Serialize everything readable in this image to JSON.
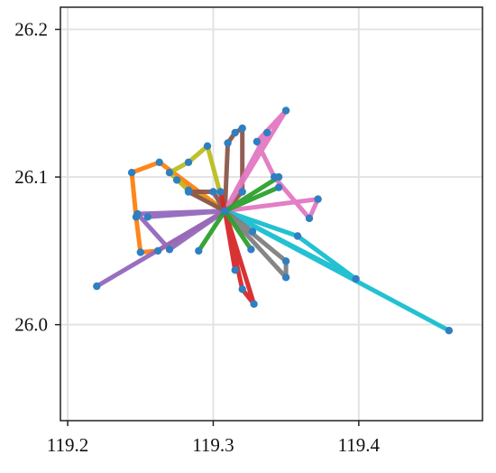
{
  "chart_data": {
    "type": "line",
    "title": "",
    "xlabel": "",
    "ylabel": "",
    "xlim": [
      119.195,
      119.485
    ],
    "ylim": [
      25.935,
      26.215
    ],
    "xticks": [
      119.2,
      119.3,
      119.4
    ],
    "yticks": [
      26.0,
      26.1,
      26.2
    ],
    "xtick_labels": [
      "119.2",
      "119.3",
      "119.4"
    ],
    "ytick_labels": [
      "26.0",
      "26.1",
      "26.2"
    ],
    "grid": true,
    "legend": "none",
    "marker_color": "#2f7fc1",
    "hub": [
      119.308,
      26.077
    ],
    "series": [
      {
        "color": "#ff7f0e",
        "points": [
          [
            119.308,
            26.077
          ],
          [
            119.263,
            26.11
          ],
          [
            119.244,
            26.103
          ],
          [
            119.247,
            26.073
          ],
          [
            119.25,
            26.049
          ],
          [
            119.262,
            26.05
          ],
          [
            119.308,
            26.077
          ],
          [
            119.275,
            26.098
          ],
          [
            119.308,
            26.077
          ]
        ]
      },
      {
        "color": "#9467bd",
        "points": [
          [
            119.308,
            26.077
          ],
          [
            119.22,
            26.026
          ],
          [
            119.308,
            26.077
          ],
          [
            119.255,
            26.073
          ],
          [
            119.308,
            26.077
          ],
          [
            119.248,
            26.075
          ],
          [
            119.27,
            26.051
          ],
          [
            119.308,
            26.077
          ]
        ]
      },
      {
        "color": "#bcbd22",
        "points": [
          [
            119.308,
            26.077
          ],
          [
            119.283,
            26.091
          ],
          [
            119.27,
            26.103
          ],
          [
            119.283,
            26.11
          ],
          [
            119.296,
            26.121
          ],
          [
            119.308,
            26.077
          ]
        ]
      },
      {
        "color": "#8c564b",
        "points": [
          [
            119.308,
            26.077
          ],
          [
            119.31,
            26.123
          ],
          [
            119.315,
            26.13
          ],
          [
            119.32,
            26.133
          ],
          [
            119.32,
            26.09
          ],
          [
            119.308,
            26.077
          ],
          [
            119.3,
            26.09
          ],
          [
            119.283,
            26.09
          ],
          [
            119.308,
            26.077
          ]
        ]
      },
      {
        "color": "#e377c2",
        "points": [
          [
            119.308,
            26.077
          ],
          [
            119.35,
            26.145
          ],
          [
            119.33,
            26.124
          ],
          [
            119.342,
            26.1
          ],
          [
            119.366,
            26.072
          ],
          [
            119.372,
            26.085
          ],
          [
            119.308,
            26.077
          ],
          [
            119.337,
            26.13
          ],
          [
            119.308,
            26.077
          ]
        ]
      },
      {
        "color": "#17becf",
        "points": [
          [
            119.308,
            26.077
          ],
          [
            119.462,
            25.996
          ],
          [
            119.308,
            26.077
          ],
          [
            119.358,
            26.06
          ],
          [
            119.398,
            26.031
          ],
          [
            119.308,
            26.077
          ]
        ]
      },
      {
        "color": "#7f7f7f",
        "points": [
          [
            119.308,
            26.077
          ],
          [
            119.35,
            26.043
          ],
          [
            119.35,
            26.032
          ],
          [
            119.308,
            26.077
          ],
          [
            119.327,
            26.063
          ],
          [
            119.308,
            26.077
          ]
        ]
      },
      {
        "color": "#d62728",
        "points": [
          [
            119.308,
            26.077
          ],
          [
            119.32,
            26.024
          ],
          [
            119.328,
            26.014
          ],
          [
            119.308,
            26.077
          ],
          [
            119.315,
            26.037
          ],
          [
            119.308,
            26.077
          ],
          [
            119.305,
            26.09
          ],
          [
            119.308,
            26.077
          ]
        ]
      },
      {
        "color": "#2ca02c",
        "points": [
          [
            119.308,
            26.077
          ],
          [
            119.345,
            26.1
          ],
          [
            119.308,
            26.077
          ],
          [
            119.345,
            26.093
          ],
          [
            119.308,
            26.077
          ],
          [
            119.326,
            26.051
          ],
          [
            119.308,
            26.077
          ],
          [
            119.29,
            26.05
          ],
          [
            119.308,
            26.077
          ]
        ]
      }
    ]
  }
}
